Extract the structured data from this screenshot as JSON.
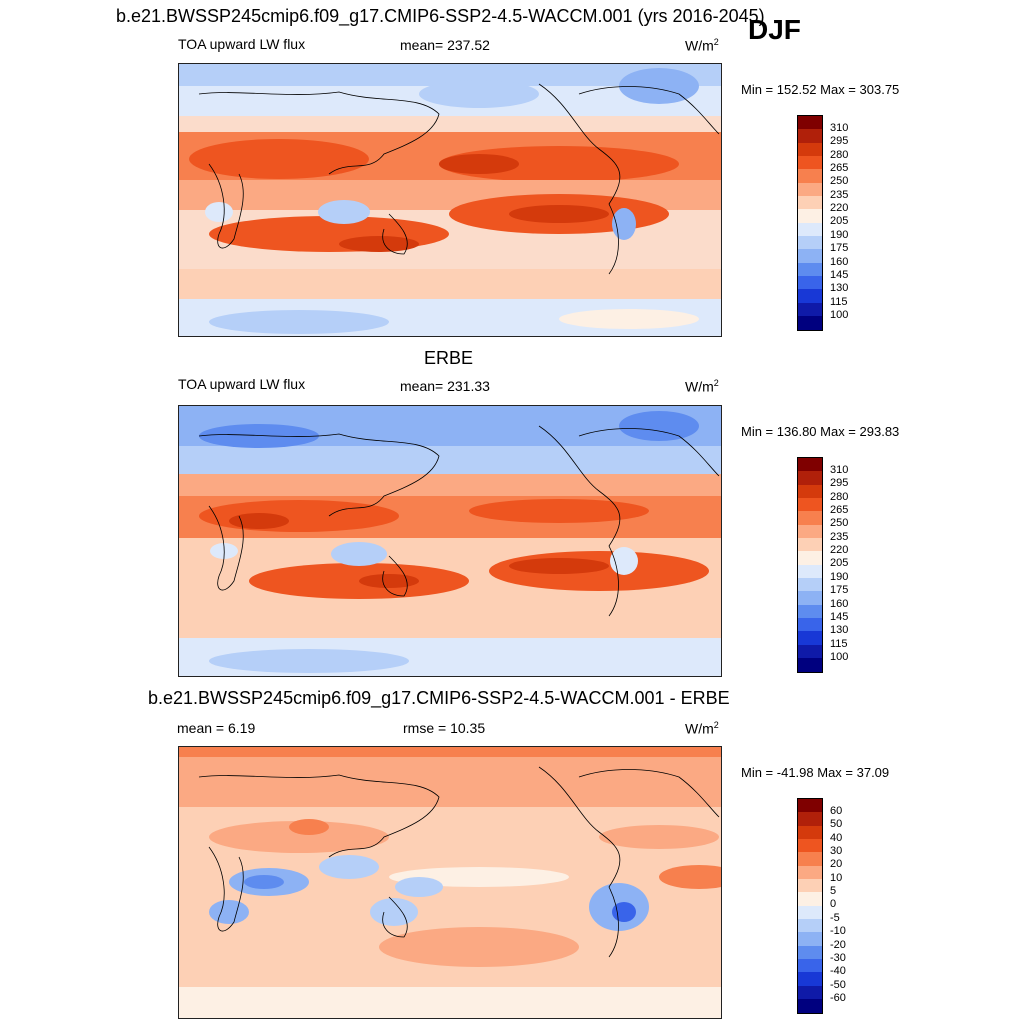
{
  "season": "DJF",
  "panels": [
    {
      "title": "b.e21.BWSSP245cmip6.f09_g17.CMIP6-SSP2-4.5-WACCM.001 (yrs 2016-2045)",
      "left": "TOA upward LW flux",
      "center": "mean= 237.52",
      "units": "W/m",
      "units_sup": "2",
      "minmax": "Min = 152.52 Max = 303.75",
      "colorbar_labels": [
        "310",
        "295",
        "280",
        "265",
        "250",
        "235",
        "220",
        "205",
        "190",
        "175",
        "160",
        "145",
        "130",
        "115",
        "100"
      ],
      "colorbar_colors": [
        "#7f0000",
        "#b0200a",
        "#d43a0c",
        "#ee5520",
        "#f7804e",
        "#fba983",
        "#fdd0b5",
        "#fdf0e4",
        "#dde9fb",
        "#b5cff8",
        "#8db2f4",
        "#5e8cef",
        "#3964ea",
        "#1838d6",
        "#0f1aa8",
        "#00007f"
      ]
    },
    {
      "title": "ERBE",
      "left": "TOA upward LW flux",
      "center": "mean= 231.33",
      "units": "W/m",
      "units_sup": "2",
      "minmax": "Min = 136.80 Max = 293.83",
      "colorbar_labels": [
        "310",
        "295",
        "280",
        "265",
        "250",
        "235",
        "220",
        "205",
        "190",
        "175",
        "160",
        "145",
        "130",
        "115",
        "100"
      ],
      "colorbar_colors": [
        "#7f0000",
        "#b0200a",
        "#d43a0c",
        "#ee5520",
        "#f7804e",
        "#fba983",
        "#fdd0b5",
        "#fdf0e4",
        "#dde9fb",
        "#b5cff8",
        "#8db2f4",
        "#5e8cef",
        "#3964ea",
        "#1838d6",
        "#0f1aa8",
        "#00007f"
      ]
    },
    {
      "title": "b.e21.BWSSP245cmip6.f09_g17.CMIP6-SSP2-4.5-WACCM.001 - ERBE",
      "left": "mean =   6.19",
      "center": "rmse =  10.35",
      "units": "W/m",
      "units_sup": "2",
      "minmax": "Min = -41.98 Max =  37.09",
      "colorbar_labels": [
        "60",
        "50",
        "40",
        "30",
        "20",
        "10",
        "5",
        "0",
        "-5",
        "-10",
        "-20",
        "-30",
        "-40",
        "-50",
        "-60"
      ],
      "colorbar_colors": [
        "#7f0000",
        "#b0200a",
        "#d43a0c",
        "#ee5520",
        "#f7804e",
        "#fba983",
        "#fdd0b5",
        "#fdf0e4",
        "#dde9fb",
        "#b5cff8",
        "#8db2f4",
        "#5e8cef",
        "#3964ea",
        "#1838d6",
        "#0f1aa8",
        "#00007f"
      ]
    }
  ]
}
